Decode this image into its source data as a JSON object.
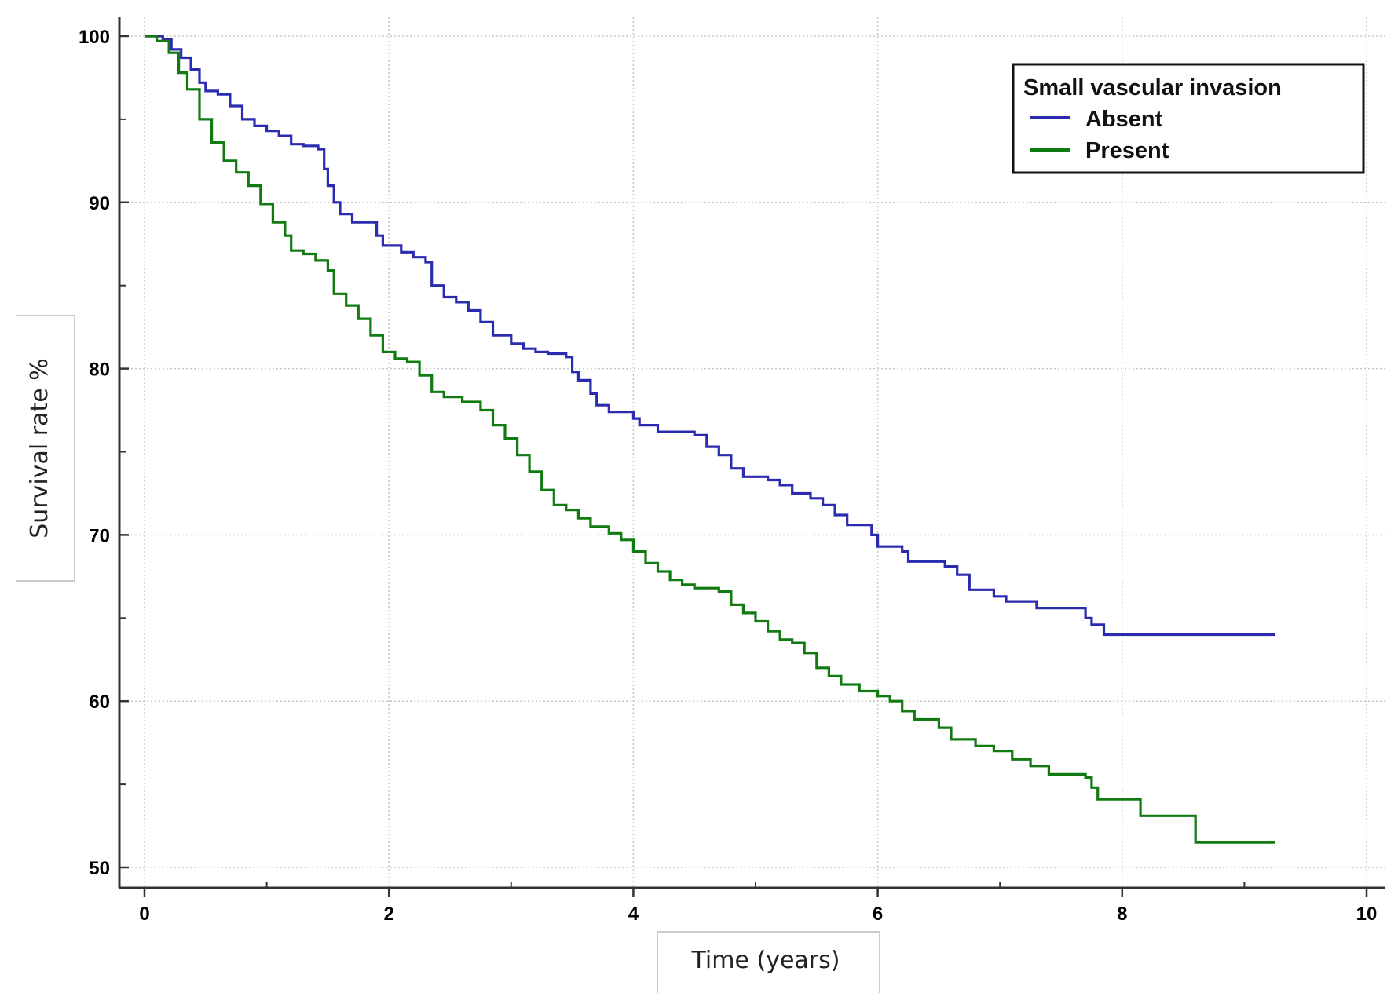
{
  "chart_data": {
    "type": "line",
    "step": true,
    "xlabel": "Time (years)",
    "ylabel": "Survival rate %",
    "xlim": [
      0,
      10
    ],
    "ylim": [
      50,
      100
    ],
    "xticks": [
      0,
      2,
      4,
      6,
      8,
      10
    ],
    "yticks": [
      50,
      60,
      70,
      80,
      90,
      100
    ],
    "grid": true,
    "legend": {
      "title": "Small vascular invasion",
      "position": "top-right"
    },
    "series": [
      {
        "name": "Absent",
        "color": "#2b2bb0",
        "points": [
          [
            0,
            100
          ],
          [
            0.15,
            99.8
          ],
          [
            0.22,
            99.2
          ],
          [
            0.3,
            98.7
          ],
          [
            0.38,
            98.0
          ],
          [
            0.45,
            97.2
          ],
          [
            0.5,
            96.7
          ],
          [
            0.6,
            96.5
          ],
          [
            0.7,
            95.8
          ],
          [
            0.8,
            95.0
          ],
          [
            0.9,
            94.6
          ],
          [
            1.0,
            94.3
          ],
          [
            1.1,
            94.0
          ],
          [
            1.2,
            93.5
          ],
          [
            1.3,
            93.4
          ],
          [
            1.42,
            93.2
          ],
          [
            1.47,
            92.0
          ],
          [
            1.5,
            91.0
          ],
          [
            1.55,
            90.0
          ],
          [
            1.6,
            89.3
          ],
          [
            1.7,
            88.8
          ],
          [
            1.9,
            88.0
          ],
          [
            1.95,
            87.4
          ],
          [
            2.1,
            87.0
          ],
          [
            2.2,
            86.7
          ],
          [
            2.3,
            86.4
          ],
          [
            2.35,
            85.0
          ],
          [
            2.45,
            84.3
          ],
          [
            2.55,
            84.0
          ],
          [
            2.65,
            83.5
          ],
          [
            2.75,
            82.8
          ],
          [
            2.85,
            82.0
          ],
          [
            3.0,
            81.5
          ],
          [
            3.1,
            81.2
          ],
          [
            3.2,
            81.0
          ],
          [
            3.3,
            80.9
          ],
          [
            3.45,
            80.7
          ],
          [
            3.5,
            79.8
          ],
          [
            3.55,
            79.3
          ],
          [
            3.65,
            78.5
          ],
          [
            3.7,
            77.8
          ],
          [
            3.8,
            77.4
          ],
          [
            4.0,
            77.0
          ],
          [
            4.05,
            76.6
          ],
          [
            4.2,
            76.2
          ],
          [
            4.5,
            76.0
          ],
          [
            4.6,
            75.3
          ],
          [
            4.7,
            74.8
          ],
          [
            4.8,
            74.0
          ],
          [
            4.9,
            73.5
          ],
          [
            5.1,
            73.3
          ],
          [
            5.2,
            73.0
          ],
          [
            5.3,
            72.5
          ],
          [
            5.45,
            72.2
          ],
          [
            5.55,
            71.8
          ],
          [
            5.65,
            71.2
          ],
          [
            5.75,
            70.6
          ],
          [
            5.95,
            70.0
          ],
          [
            6.0,
            69.3
          ],
          [
            6.2,
            69.0
          ],
          [
            6.25,
            68.4
          ],
          [
            6.55,
            68.1
          ],
          [
            6.65,
            67.6
          ],
          [
            6.75,
            66.7
          ],
          [
            6.95,
            66.3
          ],
          [
            7.05,
            66.0
          ],
          [
            7.3,
            65.6
          ],
          [
            7.7,
            65.0
          ],
          [
            7.75,
            64.6
          ],
          [
            7.85,
            64.0
          ],
          [
            9.25,
            64.0
          ]
        ]
      },
      {
        "name": "Present",
        "color": "#117a11",
        "points": [
          [
            0,
            100
          ],
          [
            0.1,
            99.7
          ],
          [
            0.2,
            99.0
          ],
          [
            0.28,
            97.8
          ],
          [
            0.35,
            96.8
          ],
          [
            0.45,
            95.0
          ],
          [
            0.55,
            93.6
          ],
          [
            0.65,
            92.5
          ],
          [
            0.75,
            91.8
          ],
          [
            0.85,
            91.0
          ],
          [
            0.95,
            89.9
          ],
          [
            1.05,
            88.8
          ],
          [
            1.15,
            88.0
          ],
          [
            1.2,
            87.1
          ],
          [
            1.3,
            86.9
          ],
          [
            1.4,
            86.5
          ],
          [
            1.5,
            85.9
          ],
          [
            1.55,
            84.5
          ],
          [
            1.65,
            83.8
          ],
          [
            1.75,
            83.0
          ],
          [
            1.85,
            82.0
          ],
          [
            1.95,
            81.0
          ],
          [
            2.05,
            80.6
          ],
          [
            2.15,
            80.4
          ],
          [
            2.25,
            79.6
          ],
          [
            2.35,
            78.6
          ],
          [
            2.45,
            78.3
          ],
          [
            2.6,
            78.0
          ],
          [
            2.75,
            77.5
          ],
          [
            2.85,
            76.6
          ],
          [
            2.95,
            75.8
          ],
          [
            3.05,
            74.8
          ],
          [
            3.15,
            73.8
          ],
          [
            3.25,
            72.7
          ],
          [
            3.35,
            71.8
          ],
          [
            3.45,
            71.5
          ],
          [
            3.55,
            71.0
          ],
          [
            3.65,
            70.5
          ],
          [
            3.8,
            70.1
          ],
          [
            3.9,
            69.7
          ],
          [
            4.0,
            69.0
          ],
          [
            4.1,
            68.3
          ],
          [
            4.2,
            67.8
          ],
          [
            4.3,
            67.3
          ],
          [
            4.4,
            67.0
          ],
          [
            4.5,
            66.8
          ],
          [
            4.7,
            66.6
          ],
          [
            4.8,
            65.8
          ],
          [
            4.9,
            65.3
          ],
          [
            5.0,
            64.8
          ],
          [
            5.1,
            64.2
          ],
          [
            5.2,
            63.7
          ],
          [
            5.3,
            63.5
          ],
          [
            5.4,
            62.9
          ],
          [
            5.5,
            62.0
          ],
          [
            5.6,
            61.5
          ],
          [
            5.7,
            61.0
          ],
          [
            5.85,
            60.6
          ],
          [
            6.0,
            60.3
          ],
          [
            6.1,
            60.0
          ],
          [
            6.2,
            59.4
          ],
          [
            6.3,
            58.9
          ],
          [
            6.5,
            58.4
          ],
          [
            6.6,
            57.7
          ],
          [
            6.8,
            57.3
          ],
          [
            6.95,
            57.0
          ],
          [
            7.1,
            56.5
          ],
          [
            7.25,
            56.1
          ],
          [
            7.4,
            55.6
          ],
          [
            7.7,
            55.4
          ],
          [
            7.75,
            54.8
          ],
          [
            7.8,
            54.1
          ],
          [
            8.15,
            53.1
          ],
          [
            8.6,
            51.5
          ],
          [
            9.25,
            51.5
          ]
        ]
      }
    ]
  }
}
